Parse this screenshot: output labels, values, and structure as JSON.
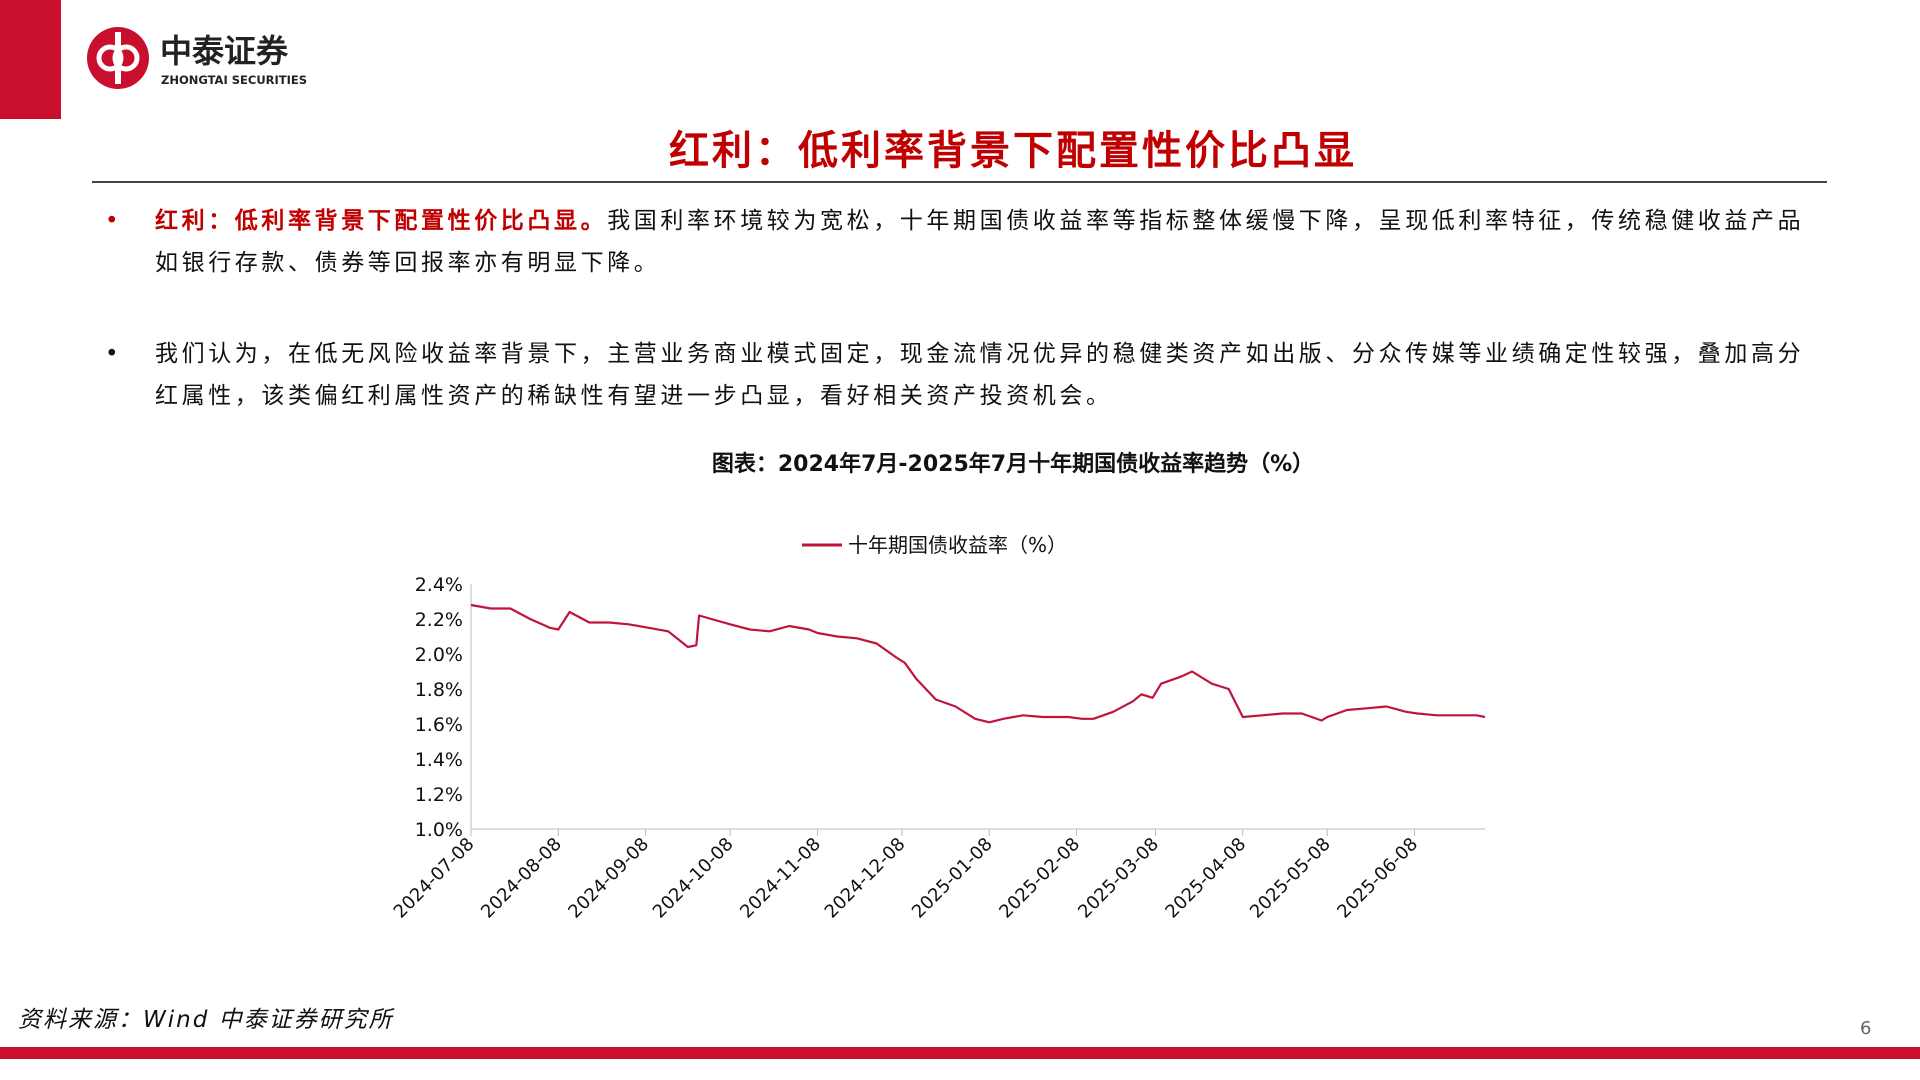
{
  "logo": {
    "name": "中泰证券",
    "name_en": "ZHONGTAI SECURITIES"
  },
  "header": {
    "title": "红利：低利率背景下配置性价比凸显"
  },
  "bullets": [
    {
      "lead": "红利：低利率背景下配置性价比凸显。",
      "text": "我国利率环境较为宽松，十年期国债收益率等指标整体缓慢下降，呈现低利率特征，传统稳健收益产品如银行存款、债券等回报率亦有明显下降。"
    },
    {
      "text": "我们认为，在低无风险收益率背景下，主营业务商业模式固定，现金流情况优异的稳健类资产如出版、分众传媒等业绩确定性较强，叠加高分红属性，该类偏红利属性资产的稀缺性有望进一步凸显，看好相关资产投资机会。"
    }
  ],
  "chart_data": {
    "type": "line",
    "title": "图表：2024年7月-2025年7月十年期国债收益率趋势（%）",
    "x": [
      "2024-07-08",
      "2024-07-15",
      "2024-07-22",
      "2024-07-29",
      "2024-08-05",
      "2024-08-08",
      "2024-08-12",
      "2024-08-19",
      "2024-08-26",
      "2024-09-02",
      "2024-09-09",
      "2024-09-16",
      "2024-09-23",
      "2024-09-26",
      "2024-09-27",
      "2024-10-08",
      "2024-10-15",
      "2024-10-22",
      "2024-10-29",
      "2024-11-05",
      "2024-11-08",
      "2024-11-15",
      "2024-11-22",
      "2024-11-29",
      "2024-12-06",
      "2024-12-09",
      "2024-12-13",
      "2024-12-20",
      "2024-12-27",
      "2025-01-03",
      "2025-01-08",
      "2025-01-13",
      "2025-01-20",
      "2025-01-27",
      "2025-02-05",
      "2025-02-10",
      "2025-02-14",
      "2025-02-21",
      "2025-02-28",
      "2025-03-03",
      "2025-03-07",
      "2025-03-10",
      "2025-03-17",
      "2025-03-21",
      "2025-03-28",
      "2025-04-03",
      "2025-04-08",
      "2025-04-15",
      "2025-04-22",
      "2025-04-29",
      "2025-05-06",
      "2025-05-08",
      "2025-05-15",
      "2025-05-22",
      "2025-05-29",
      "2025-06-05",
      "2025-06-09",
      "2025-06-16",
      "2025-06-23",
      "2025-06-30",
      "2025-07-03"
    ],
    "series": [
      {
        "name": "十年期国债收益率（%）",
        "color": "#c0143c",
        "values": [
          2.28,
          2.26,
          2.26,
          2.2,
          2.15,
          2.14,
          2.24,
          2.18,
          2.18,
          2.17,
          2.15,
          2.13,
          2.04,
          2.05,
          2.22,
          2.17,
          2.14,
          2.13,
          2.16,
          2.14,
          2.12,
          2.1,
          2.09,
          2.06,
          1.98,
          1.95,
          1.86,
          1.74,
          1.7,
          1.63,
          1.61,
          1.63,
          1.65,
          1.64,
          1.64,
          1.63,
          1.63,
          1.67,
          1.73,
          1.77,
          1.75,
          1.83,
          1.87,
          1.9,
          1.83,
          1.8,
          1.64,
          1.65,
          1.66,
          1.66,
          1.62,
          1.64,
          1.68,
          1.69,
          1.7,
          1.67,
          1.66,
          1.65,
          1.65,
          1.65,
          1.64
        ]
      }
    ],
    "xlim": [
      "2024-07-08",
      "2025-07-03"
    ],
    "xticks": [
      "2024-07-08",
      "2024-08-08",
      "2024-09-08",
      "2024-10-08",
      "2024-11-08",
      "2024-12-08",
      "2025-01-08",
      "2025-02-08",
      "2025-03-08",
      "2025-04-08",
      "2025-05-08",
      "2025-06-08"
    ],
    "ylim": [
      1.0,
      2.4
    ],
    "yticks": [
      {
        "value": 1.0,
        "label": "1.0%"
      },
      {
        "value": 1.2,
        "label": "1.2%"
      },
      {
        "value": 1.4,
        "label": "1.4%"
      },
      {
        "value": 1.6,
        "label": "1.6%"
      },
      {
        "value": 1.8,
        "label": "1.8%"
      },
      {
        "value": 2.0,
        "label": "2.0%"
      },
      {
        "value": 2.2,
        "label": "2.2%"
      },
      {
        "value": 2.4,
        "label": "2.4%"
      }
    ],
    "legend": "top"
  },
  "footer": {
    "source": "资料来源：Wind 中泰证券研究所",
    "page": "6"
  }
}
